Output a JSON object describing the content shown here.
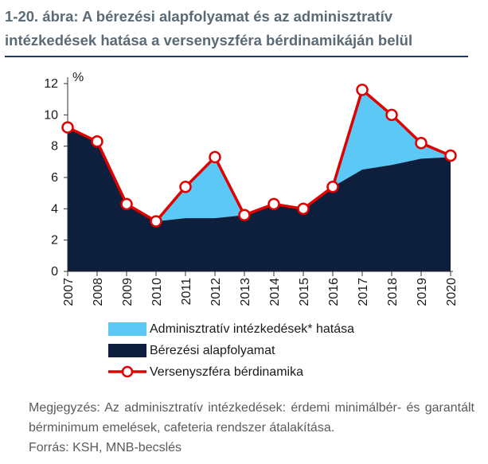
{
  "title": "1-20. ábra: A bérezési alapfolyamat és az adminisztratív intézkedések hatása a versenyszféra bérdinamikáján belül",
  "note": "Megjegyzés: Az adminisztratív intézkedések: érdemi minimálbér- és garantált bérminimum emelések, cafeteria rendszer átalakítása.",
  "source": "Forrás: KSH, MNB-becslés",
  "colors": {
    "admin_area": "#5bc8f5",
    "base_area": "#0d1f3c",
    "line": "#e00000",
    "marker_fill": "#ffffff",
    "title": "#5a6a76",
    "rule": "#1f3864"
  },
  "chart_data": {
    "type": "area",
    "title": "",
    "xlabel": "",
    "ylabel": "%",
    "ylim": [
      0,
      12
    ],
    "yticks": [
      0,
      2,
      4,
      6,
      8,
      10,
      12
    ],
    "grid": false,
    "legend_position": "bottom",
    "x": [
      "2007",
      "2008",
      "2009",
      "2010",
      "2011",
      "2012",
      "2013",
      "2014",
      "2015",
      "2016",
      "2017",
      "2018",
      "2019",
      "2020"
    ],
    "series": [
      {
        "name": "Adminisztratív intézkedések* hatása",
        "kind": "area",
        "values": [
          0.0,
          0.0,
          0.0,
          0.0,
          2.0,
          3.9,
          0.0,
          0.0,
          0.0,
          0.0,
          5.1,
          3.2,
          1.0,
          0.1
        ]
      },
      {
        "name": "Bérezési alapfolyamat",
        "kind": "area",
        "values": [
          9.2,
          8.3,
          4.3,
          3.2,
          3.4,
          3.4,
          3.6,
          4.3,
          4.0,
          5.4,
          6.5,
          6.8,
          7.2,
          7.3
        ]
      },
      {
        "name": "Versenyszféra bérdinamika",
        "kind": "line",
        "values": [
          9.2,
          8.3,
          4.3,
          3.2,
          5.4,
          7.3,
          3.6,
          4.3,
          4.0,
          5.4,
          11.6,
          10.0,
          8.2,
          7.4
        ]
      }
    ]
  }
}
